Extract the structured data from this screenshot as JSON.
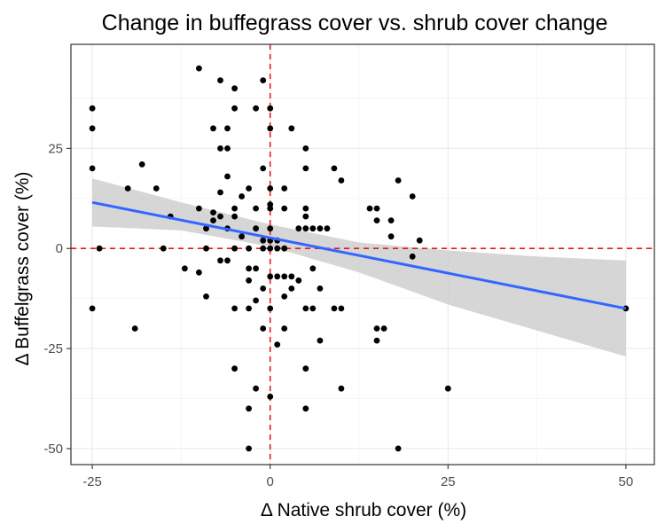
{
  "chart_data": {
    "type": "scatter",
    "title": "Change in buffegrass cover vs. shrub cover change",
    "xlabel": "Δ Native shrub cover (%)",
    "ylabel": "Δ Buffelgrass cover (%)",
    "xlim": [
      -28,
      54
    ],
    "ylim": [
      -54,
      51
    ],
    "xticks": [
      -25,
      0,
      25,
      50
    ],
    "yticks": [
      -50,
      -25,
      0,
      25
    ],
    "x_tick_labels": [
      "-25",
      "0",
      "25",
      "50"
    ],
    "y_tick_labels": [
      "-50",
      "-25",
      "0",
      "25"
    ],
    "grid": true,
    "reference_lines": {
      "x": 0,
      "y": 0,
      "color": "#e41a1c",
      "style": "dashed"
    },
    "regression": {
      "x_range": [
        -25,
        50
      ],
      "y_start": 11.5,
      "y_end": -15,
      "color": "#3366ff",
      "ci": [
        {
          "x": -25,
          "lower": 5.5,
          "upper": 17.5
        },
        {
          "x": -12.5,
          "lower": 4.5,
          "upper": 11.5
        },
        {
          "x": 0,
          "lower": 0.5,
          "upper": 6
        },
        {
          "x": 12.5,
          "lower": -6,
          "upper": 1.5
        },
        {
          "x": 25,
          "lower": -14,
          "upper": -0.5
        },
        {
          "x": 37.5,
          "lower": -20.5,
          "upper": -2
        },
        {
          "x": 50,
          "lower": -27,
          "upper": -3
        }
      ],
      "ci_color": "#cccccc"
    },
    "point_color": "#000000",
    "points": [
      [
        -25,
        35
      ],
      [
        -25,
        30
      ],
      [
        -25,
        20
      ],
      [
        -25,
        -15
      ],
      [
        -24,
        0
      ],
      [
        -20,
        15
      ],
      [
        -18,
        21
      ],
      [
        -16,
        15
      ],
      [
        -15,
        0
      ],
      [
        -14,
        8
      ],
      [
        -19,
        -20
      ],
      [
        -12,
        -5
      ],
      [
        -10,
        45
      ],
      [
        -10,
        10
      ],
      [
        -10,
        -6
      ],
      [
        -9,
        0
      ],
      [
        -9,
        -12
      ],
      [
        -9,
        5
      ],
      [
        -8,
        7
      ],
      [
        -8,
        9
      ],
      [
        -7,
        42
      ],
      [
        -8,
        30
      ],
      [
        -7,
        25
      ],
      [
        -6,
        25
      ],
      [
        -6,
        30
      ],
      [
        -6,
        18
      ],
      [
        -7,
        14
      ],
      [
        -7,
        8
      ],
      [
        -6,
        5
      ],
      [
        -7,
        -3
      ],
      [
        -6,
        -3
      ],
      [
        -5,
        40
      ],
      [
        -5,
        35
      ],
      [
        -5,
        10
      ],
      [
        -5,
        8
      ],
      [
        -5,
        0
      ],
      [
        -5,
        -15
      ],
      [
        -5,
        -30
      ],
      [
        -4,
        13
      ],
      [
        -4,
        3
      ],
      [
        -3,
        15
      ],
      [
        -3,
        0
      ],
      [
        -3,
        -5
      ],
      [
        -3,
        -8
      ],
      [
        -3,
        -15
      ],
      [
        -3,
        -40
      ],
      [
        -3,
        -50
      ],
      [
        -2,
        35
      ],
      [
        -2,
        10
      ],
      [
        -2,
        5
      ],
      [
        -2,
        -5
      ],
      [
        -2,
        -13
      ],
      [
        -2,
        -35
      ],
      [
        -1,
        42
      ],
      [
        -1,
        20
      ],
      [
        -1,
        2
      ],
      [
        -1,
        0
      ],
      [
        -1,
        -10
      ],
      [
        -1,
        -20
      ],
      [
        0,
        35
      ],
      [
        0,
        30
      ],
      [
        0,
        15
      ],
      [
        0,
        11
      ],
      [
        0,
        10
      ],
      [
        0,
        5
      ],
      [
        0,
        2
      ],
      [
        0,
        0
      ],
      [
        0,
        -7
      ],
      [
        0,
        -15
      ],
      [
        0,
        -37
      ],
      [
        1,
        0
      ],
      [
        1,
        -7
      ],
      [
        1,
        -24
      ],
      [
        1,
        2
      ],
      [
        2,
        15
      ],
      [
        2,
        10
      ],
      [
        2,
        0
      ],
      [
        2,
        -7
      ],
      [
        2,
        -12
      ],
      [
        2,
        -20
      ],
      [
        3,
        30
      ],
      [
        3,
        -10
      ],
      [
        3,
        -7
      ],
      [
        4,
        5
      ],
      [
        4,
        -8
      ],
      [
        5,
        25
      ],
      [
        5,
        20
      ],
      [
        5,
        10
      ],
      [
        5,
        8
      ],
      [
        5,
        5
      ],
      [
        5,
        -15
      ],
      [
        5,
        -30
      ],
      [
        5,
        -40
      ],
      [
        6,
        5
      ],
      [
        6,
        -15
      ],
      [
        7,
        5
      ],
      [
        7,
        -10
      ],
      [
        7,
        -23
      ],
      [
        8,
        5
      ],
      [
        6,
        -5
      ],
      [
        9,
        20
      ],
      [
        10,
        17
      ],
      [
        10,
        -15
      ],
      [
        9,
        -15
      ],
      [
        10,
        -35
      ],
      [
        14,
        10
      ],
      [
        15,
        10
      ],
      [
        15,
        7
      ],
      [
        15,
        -20
      ],
      [
        15,
        -23
      ],
      [
        16,
        -20
      ],
      [
        17,
        3
      ],
      [
        17,
        7
      ],
      [
        18,
        17
      ],
      [
        18,
        -50
      ],
      [
        20,
        13
      ],
      [
        20,
        -2
      ],
      [
        21,
        2
      ],
      [
        25,
        -35
      ],
      [
        50,
        -15
      ]
    ]
  }
}
